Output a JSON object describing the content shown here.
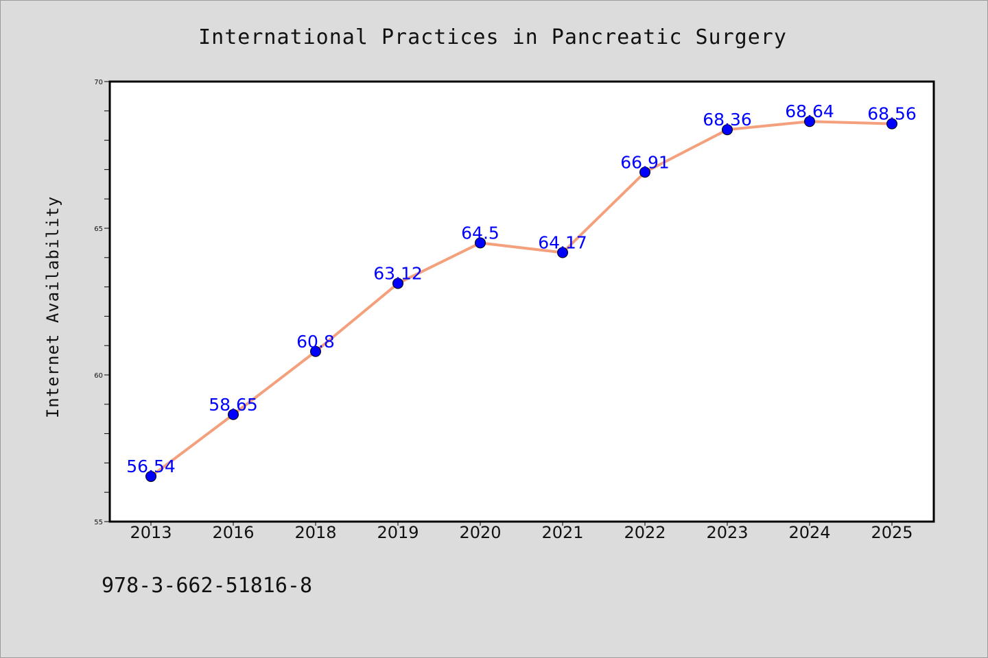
{
  "colors": {
    "background": "#dcdcdc",
    "plot_background": "#ffffff",
    "line": "#f4a07c",
    "marker": "#0000ff",
    "label": "#0000ff"
  },
  "isbn": "978-3-662-51816-8",
  "chart_data": {
    "type": "line",
    "title": "International Practices in Pancreatic Surgery",
    "xlabel": "",
    "ylabel": "Internet Availability",
    "categories": [
      "2013",
      "2016",
      "2018",
      "2019",
      "2020",
      "2021",
      "2022",
      "2023",
      "2024",
      "2025"
    ],
    "series": [
      {
        "values": [
          56.54,
          58.65,
          60.8,
          63.12,
          64.5,
          64.17,
          66.91,
          68.36,
          68.64,
          68.56
        ],
        "labels": [
          "56.54",
          "58.65",
          "60.8",
          "63.12",
          "64.5",
          "64.17",
          "66.91",
          "68.36",
          "68.64",
          "68.56"
        ]
      }
    ],
    "ylim": [
      55,
      70
    ],
    "yticks": [
      55,
      60,
      65,
      70
    ],
    "ytick_labels": [
      "55",
      "60",
      "65",
      "70"
    ],
    "grid": false,
    "legend": "none"
  }
}
